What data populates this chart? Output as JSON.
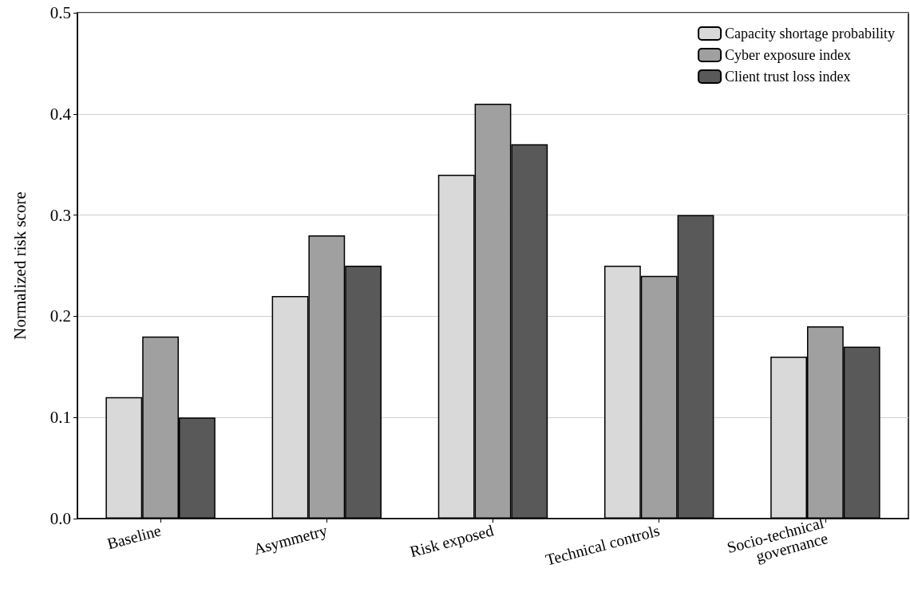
{
  "chart_data": {
    "type": "bar",
    "ylabel": "Normalized risk score",
    "categories": [
      "Baseline",
      "Asymmetry",
      "Risk exposed",
      "Technical controls",
      "Socio-technical\ngovernance"
    ],
    "series": [
      {
        "name": "Capacity shortage probability",
        "color": "#d9d9d9",
        "values": [
          0.12,
          0.22,
          0.34,
          0.25,
          0.16
        ]
      },
      {
        "name": "Cyber exposure index",
        "color": "#a0a0a0",
        "values": [
          0.18,
          0.28,
          0.41,
          0.24,
          0.19
        ]
      },
      {
        "name": "Client trust loss index",
        "color": "#595959",
        "values": [
          0.1,
          0.25,
          0.37,
          0.3,
          0.17
        ]
      }
    ],
    "ylim": [
      0,
      0.5
    ],
    "yticks": [
      {
        "value": 0,
        "label": "0.0"
      },
      0.1,
      0.2,
      0.3,
      0.4,
      0.5
    ],
    "grid": "y",
    "legend": "top right"
  }
}
